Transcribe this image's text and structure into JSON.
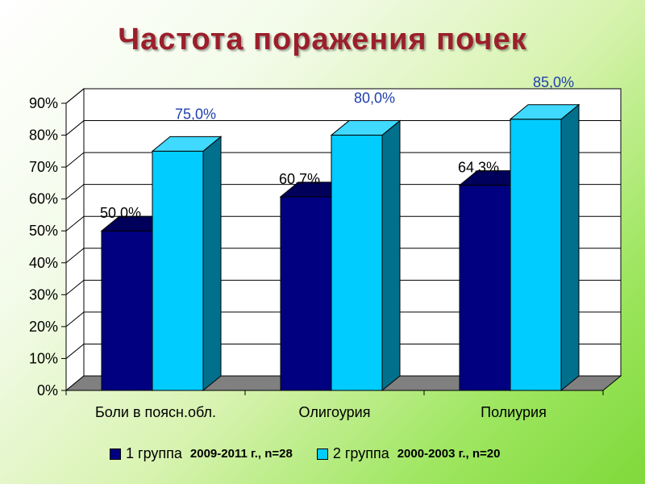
{
  "title": "Частота поражения почек",
  "chart_data": {
    "type": "bar",
    "categories": [
      "Боли в поясн.обл.",
      "Олигоурия",
      "Полиурия"
    ],
    "series": [
      {
        "name": "1 группа",
        "subtitle": "2009-2011 г., n=28",
        "values": [
          50.0,
          60.7,
          64.3
        ],
        "labels": [
          "50,0%",
          "60,7%",
          "64,3%"
        ],
        "color": "#000080"
      },
      {
        "name": "2 группа",
        "subtitle": "2000-2003 г., n=20",
        "values": [
          75.0,
          80.0,
          85.0
        ],
        "labels": [
          "75,0%",
          "80,0%",
          "85,0%"
        ],
        "color": "#00ccff"
      }
    ],
    "yticks": [
      "0%",
      "10%",
      "20%",
      "30%",
      "40%",
      "50%",
      "60%",
      "70%",
      "80%",
      "90%"
    ],
    "ylim": [
      0,
      90
    ],
    "grid": true,
    "legend_position": "bottom",
    "style": "3d-clustered-column"
  }
}
